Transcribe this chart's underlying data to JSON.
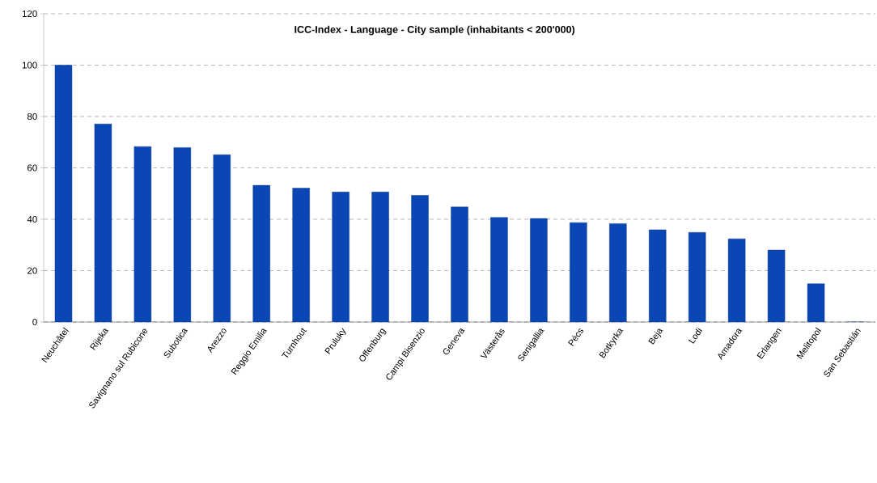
{
  "chart_data": {
    "type": "bar",
    "title": "ICC-Index - Language - City sample (inhabitants < 200'000)",
    "categories": [
      "Neuchâtel",
      "Rijeka",
      "Savignano sul Rubicone",
      "Subotica",
      "Arezzo",
      "Reggio Emilia",
      "Turnhout",
      "Pruluky",
      "Offenburg",
      "Campi Bisenzio",
      "Geneva",
      "Västerås",
      "Senigallia",
      "Pécs",
      "Botkyrka",
      "Beja",
      "Lodi",
      "Amadora",
      "Erlangen",
      "Melitopol",
      "San Sebastián"
    ],
    "values": [
      100,
      77.1,
      68.3,
      67.9,
      65.1,
      53.2,
      52.1,
      50.6,
      50.6,
      49.3,
      44.8,
      40.7,
      40.3,
      38.7,
      38.3,
      35.9,
      34.9,
      32.4,
      28.0,
      14.9,
      0
    ],
    "color": "#0a46b4",
    "ylim": [
      0,
      120
    ],
    "yticks": [
      0,
      20,
      40,
      60,
      80,
      100,
      120
    ],
    "grid": "y"
  }
}
